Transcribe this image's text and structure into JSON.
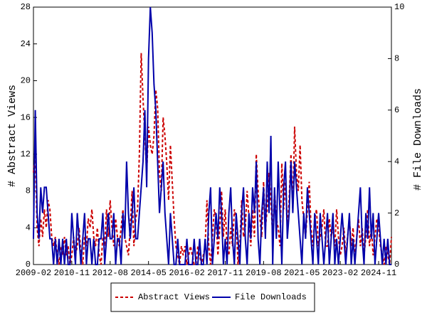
{
  "chart_data": {
    "type": "line",
    "ylabel": "# Abstract Views",
    "y2label": "# File Downloads",
    "x": [
      "2009-02",
      "2009-03",
      "2009-04",
      "2009-05",
      "2009-06",
      "2009-07",
      "2009-08",
      "2009-09",
      "2009-10",
      "2009-11",
      "2009-12",
      "2010-01",
      "2010-02",
      "2010-03",
      "2010-04",
      "2010-05",
      "2010-06",
      "2010-07",
      "2010-08",
      "2010-09",
      "2010-10",
      "2010-11",
      "2010-12",
      "2011-01",
      "2011-02",
      "2011-03",
      "2011-04",
      "2011-05",
      "2011-06",
      "2011-07",
      "2011-08",
      "2011-09",
      "2011-10",
      "2011-11",
      "2011-12",
      "2012-01",
      "2012-02",
      "2012-03",
      "2012-04",
      "2012-05",
      "2012-06",
      "2012-07",
      "2012-08",
      "2012-09",
      "2012-10",
      "2012-11",
      "2012-12",
      "2013-01",
      "2013-02",
      "2013-03",
      "2013-04",
      "2013-05",
      "2013-06",
      "2013-07",
      "2013-08",
      "2013-09",
      "2013-10",
      "2013-11",
      "2013-12",
      "2014-01",
      "2014-02",
      "2014-03",
      "2014-04",
      "2014-05",
      "2014-06",
      "2014-07",
      "2014-08",
      "2014-09",
      "2014-10",
      "2014-11",
      "2014-12",
      "2015-01",
      "2015-02",
      "2015-03",
      "2015-04",
      "2015-05",
      "2015-06",
      "2015-07",
      "2015-08",
      "2015-09",
      "2015-10",
      "2015-11",
      "2015-12",
      "2016-01",
      "2016-02",
      "2016-03",
      "2016-04",
      "2016-05",
      "2016-06",
      "2016-07",
      "2016-08",
      "2016-09",
      "2016-10",
      "2016-11",
      "2016-12",
      "2017-01",
      "2017-02",
      "2017-03",
      "2017-04",
      "2017-05",
      "2017-06",
      "2017-07",
      "2017-08",
      "2017-09",
      "2017-10",
      "2017-11",
      "2017-12",
      "2018-01",
      "2018-02",
      "2018-03",
      "2018-04",
      "2018-05",
      "2018-06",
      "2018-07",
      "2018-08",
      "2018-09",
      "2018-10",
      "2018-11",
      "2018-12",
      "2019-01",
      "2019-02",
      "2019-03",
      "2019-04",
      "2019-05",
      "2019-06",
      "2019-07",
      "2019-08",
      "2019-09",
      "2019-10",
      "2019-11",
      "2019-12",
      "2020-01",
      "2020-02",
      "2020-03",
      "2020-04",
      "2020-05",
      "2020-06",
      "2020-07",
      "2020-08",
      "2020-09",
      "2020-10",
      "2020-11",
      "2020-12",
      "2021-01",
      "2021-02",
      "2021-03",
      "2021-04",
      "2021-05",
      "2021-06",
      "2021-07",
      "2021-08",
      "2021-09",
      "2021-10",
      "2021-11",
      "2021-12",
      "2022-01",
      "2022-02",
      "2022-03",
      "2022-04",
      "2022-05",
      "2022-06",
      "2022-07",
      "2022-08",
      "2022-09",
      "2022-10",
      "2022-11",
      "2022-12",
      "2023-01",
      "2023-02",
      "2023-03",
      "2023-04",
      "2023-05",
      "2023-06",
      "2023-07",
      "2023-08",
      "2023-09",
      "2023-10",
      "2023-11",
      "2023-12",
      "2024-01",
      "2024-02",
      "2024-03",
      "2024-04",
      "2024-05",
      "2024-06",
      "2024-07",
      "2024-08",
      "2024-09",
      "2024-10",
      "2024-11",
      "2024-12",
      "2025-01",
      "2025-02",
      "2025-03",
      "2025-04",
      "2025-05",
      "2025-06"
    ],
    "xticks": [
      "2009-02",
      "2010-11",
      "2012-08",
      "2014-05",
      "2016-02",
      "2017-11",
      "2019-08",
      "2021-05",
      "2023-02",
      "2024-11"
    ],
    "ylim": [
      0,
      28
    ],
    "yticks": [
      0,
      4,
      8,
      12,
      16,
      20,
      24,
      28
    ],
    "y2lim": [
      0,
      10
    ],
    "y2ticks": [
      0,
      2,
      4,
      6,
      8,
      10
    ],
    "series": [
      {
        "name": "Abstract Views",
        "color": "#cc0000",
        "dashed": true,
        "values": [
          10,
          12,
          4,
          2,
          5,
          3,
          6,
          4,
          7,
          6,
          3,
          2,
          3,
          1,
          0,
          2,
          1,
          3,
          1,
          2,
          0,
          1,
          3,
          1,
          2,
          4,
          1,
          0,
          3,
          2,
          5,
          4,
          6,
          3,
          2,
          4,
          1,
          0,
          3,
          2,
          6,
          3,
          7,
          4,
          2,
          5,
          3,
          2,
          4,
          6,
          3,
          2,
          1,
          4,
          8,
          2,
          5,
          6,
          12,
          23,
          18,
          14,
          10,
          15,
          13,
          12,
          14,
          19,
          17,
          10,
          8,
          16,
          14,
          11,
          7,
          13,
          9,
          5,
          2,
          1,
          0,
          2,
          1,
          2,
          0,
          1,
          2,
          1,
          0,
          0,
          2,
          1,
          0,
          1,
          2,
          7,
          2,
          0,
          3,
          6,
          5,
          1,
          4,
          8,
          3,
          6,
          2,
          1,
          4,
          2,
          6,
          5,
          0,
          2,
          7,
          3,
          4,
          8,
          5,
          2,
          6,
          3,
          12,
          8,
          5,
          3,
          9,
          4,
          6,
          10,
          7,
          3,
          8,
          5,
          4,
          2,
          11,
          6,
          9,
          4,
          7,
          12,
          6,
          15,
          10,
          8,
          13,
          7,
          5,
          3,
          6,
          9,
          4,
          2,
          5,
          6,
          2,
          3,
          4,
          6,
          2,
          2,
          5,
          3,
          4,
          2,
          6,
          3,
          1,
          2,
          4,
          1,
          3,
          5,
          2,
          4,
          1,
          3,
          5,
          2,
          4,
          1,
          3,
          6,
          2,
          4,
          1,
          3,
          5,
          4,
          2,
          1,
          0,
          2,
          1,
          0,
          3
        ]
      },
      {
        "name": "File Downloads",
        "color": "#0000aa",
        "dashed": false,
        "axis": "y2",
        "values": [
          1,
          6,
          2,
          1,
          3,
          2,
          3,
          3,
          2,
          1,
          1,
          0,
          1,
          0,
          1,
          0,
          1,
          0,
          1,
          0,
          0,
          2,
          1,
          0,
          2,
          1,
          0,
          1,
          2,
          0,
          1,
          1,
          0,
          1,
          0,
          0,
          1,
          1,
          2,
          0,
          1,
          2,
          1,
          1,
          2,
          0,
          1,
          1,
          0,
          2,
          1,
          4,
          2,
          1,
          2,
          3,
          1,
          1,
          2,
          3,
          4,
          6,
          3,
          8,
          10,
          9,
          7,
          6,
          4,
          2,
          3,
          4,
          2,
          1,
          0,
          2,
          1,
          0,
          0,
          1,
          0,
          0,
          0,
          0,
          1,
          0,
          0,
          0,
          1,
          0,
          0,
          1,
          0,
          0,
          1,
          0,
          2,
          3,
          0,
          1,
          2,
          1,
          3,
          2,
          0,
          1,
          0,
          2,
          3,
          1,
          0,
          2,
          1,
          0,
          2,
          3,
          1,
          0,
          2,
          1,
          3,
          2,
          4,
          1,
          0,
          2,
          3,
          1,
          4,
          2,
          5,
          0,
          3,
          1,
          4,
          2,
          0,
          3,
          4,
          1,
          2,
          4,
          2,
          4,
          3,
          2,
          1,
          0,
          2,
          1,
          3,
          2,
          1,
          0,
          2,
          1,
          0,
          2,
          1,
          0,
          1,
          2,
          0,
          1,
          2,
          0,
          1,
          0,
          1,
          2,
          1,
          0,
          1,
          2,
          0,
          1,
          0,
          1,
          2,
          3,
          1,
          0,
          2,
          1,
          3,
          1,
          2,
          0,
          1,
          2,
          1,
          0,
          1,
          0,
          1,
          0,
          0
        ]
      }
    ],
    "legend": "bottom"
  }
}
